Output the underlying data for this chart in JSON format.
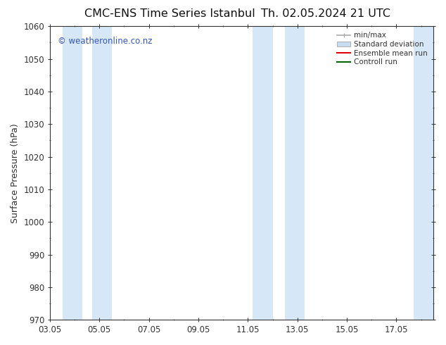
{
  "title_left": "CMC-ENS Time Series Istanbul",
  "title_right": "Th. 02.05.2024 21 UTC",
  "ylabel": "Surface Pressure (hPa)",
  "xlabel_ticks": [
    "03.05",
    "05.05",
    "07.05",
    "09.05",
    "11.05",
    "13.05",
    "15.05",
    "17.05"
  ],
  "xtick_positions": [
    0,
    2,
    4,
    6,
    8,
    10,
    12,
    14
  ],
  "xlim": [
    0,
    15.5
  ],
  "ylim": [
    970,
    1060
  ],
  "yticks": [
    970,
    980,
    990,
    1000,
    1010,
    1020,
    1030,
    1040,
    1050,
    1060
  ],
  "watermark": "© weatheronline.co.nz",
  "watermark_color": "#3355bb",
  "bg_color": "#ffffff",
  "plot_bg_color": "#ffffff",
  "shaded_bands": [
    {
      "x_start": 0.5,
      "x_end": 1.3
    },
    {
      "x_start": 1.7,
      "x_end": 2.5
    },
    {
      "x_start": 8.2,
      "x_end": 9.0
    },
    {
      "x_start": 9.5,
      "x_end": 10.3
    },
    {
      "x_start": 14.7,
      "x_end": 15.5
    }
  ],
  "band_color": "#d6e8f7",
  "legend_items": [
    {
      "label": "min/max",
      "type": "minmax",
      "color": "#aaaaaa"
    },
    {
      "label": "Standard deviation",
      "type": "patch",
      "color": "#c8ddf0"
    },
    {
      "label": "Ensemble mean run",
      "type": "line",
      "color": "#dd0000"
    },
    {
      "label": "Controll run",
      "type": "line",
      "color": "#006600"
    }
  ],
  "tick_color": "#333333",
  "spine_color": "#333333",
  "title_color": "#111111",
  "title_fontsize": 11.5,
  "label_fontsize": 9,
  "tick_fontsize": 8.5,
  "legend_fontsize": 7.5,
  "watermark_fontsize": 8.5
}
